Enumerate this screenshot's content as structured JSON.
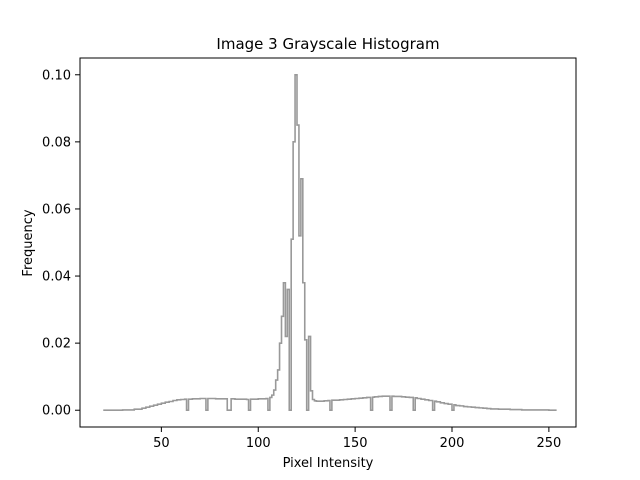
{
  "chart_data": {
    "type": "histogram-step",
    "title": "Image 3 Grayscale Histogram",
    "xlabel": "Pixel Intensity",
    "ylabel": "Frequency",
    "xlim": [
      8,
      264
    ],
    "ylim": [
      -0.005,
      0.105
    ],
    "xticks": [
      50,
      100,
      150,
      200,
      250
    ],
    "xtick_labels": [
      "50",
      "100",
      "150",
      "200",
      "250"
    ],
    "yticks": [
      0.0,
      0.02,
      0.04,
      0.06,
      0.08,
      0.1
    ],
    "ytick_labels": [
      "0.00",
      "0.02",
      "0.04",
      "0.06",
      "0.08",
      "0.10"
    ],
    "grid": false,
    "line_color": "#999999",
    "series": [
      {
        "x": [
          20,
          30,
          36,
          40,
          42,
          44,
          46,
          48,
          50,
          52,
          54,
          56,
          58,
          60,
          62,
          63,
          64,
          66,
          68,
          70,
          72,
          73,
          74,
          76,
          78,
          80,
          82,
          84,
          86,
          88,
          90,
          92,
          94,
          95,
          96,
          98,
          100,
          102,
          104,
          105,
          106,
          107,
          108,
          109,
          110,
          111,
          112,
          113,
          114,
          115,
          116,
          117,
          118,
          119,
          120,
          121,
          122,
          123,
          124,
          125,
          126,
          127,
          128,
          129,
          130,
          132,
          134,
          136,
          137,
          138,
          140,
          142,
          144,
          146,
          148,
          150,
          152,
          154,
          156,
          158,
          159,
          160,
          162,
          164,
          166,
          168,
          169,
          170,
          172,
          174,
          176,
          178,
          180,
          181,
          182,
          184,
          186,
          188,
          190,
          191,
          192,
          194,
          196,
          198,
          200,
          201,
          202,
          204,
          206,
          208,
          210,
          212,
          214,
          216,
          218,
          220,
          222,
          224,
          226,
          228,
          230,
          232,
          234,
          236,
          238,
          240,
          242,
          244,
          246,
          248,
          250,
          254
        ],
        "y": [
          0.0,
          0.0001,
          0.0003,
          0.0006,
          0.0009,
          0.0012,
          0.0015,
          0.0018,
          0.0021,
          0.0024,
          0.0026,
          0.0029,
          0.0031,
          0.0032,
          0.0033,
          0.0,
          0.0033,
          0.0034,
          0.0034,
          0.0035,
          0.0035,
          0.0,
          0.0035,
          0.0035,
          0.0034,
          0.0034,
          0.0034,
          0.0,
          0.0034,
          0.0033,
          0.0033,
          0.0033,
          0.0032,
          0.0,
          0.0033,
          0.0033,
          0.0034,
          0.0034,
          0.0035,
          0.0,
          0.0038,
          0.0045,
          0.006,
          0.009,
          0.012,
          0.02,
          0.028,
          0.038,
          0.022,
          0.036,
          0.0,
          0.051,
          0.08,
          0.1,
          0.085,
          0.052,
          0.069,
          0.038,
          0.021,
          0.0,
          0.022,
          0.0058,
          0.0032,
          0.0028,
          0.0027,
          0.0027,
          0.0028,
          0.0029,
          0.0,
          0.003,
          0.003,
          0.0031,
          0.0032,
          0.0033,
          0.0034,
          0.0035,
          0.0036,
          0.0037,
          0.0038,
          0.0,
          0.0039,
          0.004,
          0.0041,
          0.0042,
          0.0042,
          0.0,
          0.0042,
          0.0041,
          0.0041,
          0.004,
          0.0039,
          0.0038,
          0.0,
          0.0037,
          0.0035,
          0.0033,
          0.0031,
          0.0029,
          0.0,
          0.0027,
          0.0025,
          0.0022,
          0.002,
          0.0018,
          0.0,
          0.0016,
          0.0014,
          0.0013,
          0.0011,
          0.001,
          0.0009,
          0.0008,
          0.0007,
          0.0006,
          0.0005,
          0.0004,
          0.0004,
          0.0003,
          0.0003,
          0.0003,
          0.0002,
          0.0002,
          0.0002,
          0.0001,
          0.0001,
          0.0001,
          0.0001,
          0.0001,
          0.0001,
          0.0001,
          0.0
        ]
      }
    ]
  }
}
